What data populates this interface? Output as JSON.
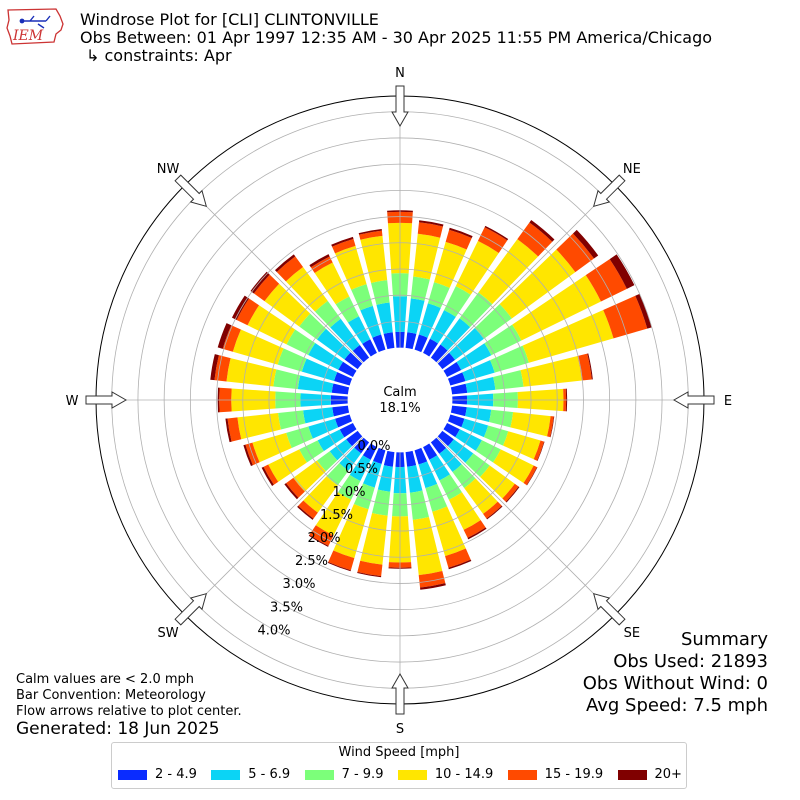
{
  "header": {
    "logo_text": "IEM",
    "title_line1": "Windrose Plot for [CLI] CLINTONVILLE",
    "title_line2": "Obs Between: 01 Apr 1997 12:35 AM - 30 Apr 2025 11:55 PM America/Chicago",
    "title_line3": "↳ constraints: Apr"
  },
  "summary": {
    "heading": "Summary",
    "obs_used": "Obs Used: 21893",
    "obs_without_wind": "Obs Without Wind: 0",
    "avg_speed": "Avg Speed: 7.5 mph"
  },
  "notes": {
    "calm_note": "Calm values are < 2.0 mph",
    "bar_convention": "Bar Convention: Meteorology",
    "flow_arrows": "Flow arrows relative to plot center.",
    "generated": "Generated: 18 Jun 2025"
  },
  "chart_data": {
    "type": "windrose",
    "calm_label": "Calm",
    "calm_value": "18.1%",
    "radial_unit": "%",
    "radial_max": 4.8,
    "calm_offset": 1.0,
    "radial_ticks": [
      "0.0%",
      "0.5%",
      "1.0%",
      "1.5%",
      "2.0%",
      "2.5%",
      "3.0%",
      "3.5%",
      "4.0%"
    ],
    "directions": [
      "N",
      "NE",
      "E",
      "SE",
      "S",
      "SW",
      "W",
      "NW"
    ],
    "bin_width_deg": 10,
    "legend_title": "Wind Speed [mph]",
    "bins": [
      {
        "label": "2 - 4.9",
        "color": "#0a2cff"
      },
      {
        "label": "5 - 6.9",
        "color": "#0bd4f5"
      },
      {
        "label": "7 - 9.9",
        "color": "#7cff7a"
      },
      {
        "label": "10 - 14.9",
        "color": "#ffe600"
      },
      {
        "label": "15 - 19.9",
        "color": "#ff4a00"
      },
      {
        "label": "20+",
        "color": "#800000"
      }
    ],
    "sectors": [
      {
        "dir_deg": 0,
        "cum": [
          0.3,
          0.98,
          1.42,
          2.38,
          2.59,
          2.62
        ]
      },
      {
        "dir_deg": 10,
        "cum": [
          0.3,
          0.95,
          1.37,
          2.19,
          2.41,
          2.45
        ]
      },
      {
        "dir_deg": 20,
        "cum": [
          0.3,
          0.92,
          1.34,
          2.14,
          2.38,
          2.42
        ]
      },
      {
        "dir_deg": 30,
        "cum": [
          0.3,
          0.91,
          1.42,
          2.38,
          2.67,
          2.7
        ]
      },
      {
        "dir_deg": 40,
        "cum": [
          0.31,
          0.93,
          1.54,
          2.8,
          3.19,
          3.25
        ]
      },
      {
        "dir_deg": 50,
        "cum": [
          0.3,
          0.98,
          1.64,
          3.14,
          3.58,
          3.68
        ]
      },
      {
        "dir_deg": 60,
        "cum": [
          0.3,
          0.94,
          1.58,
          3.27,
          3.82,
          3.98
        ]
      },
      {
        "dir_deg": 70,
        "cum": [
          0.3,
          0.88,
          1.56,
          3.24,
          3.91,
          4.0
        ]
      },
      {
        "dir_deg": 80,
        "cum": [
          0.29,
          0.83,
          1.37,
          2.49,
          2.68,
          2.7
        ]
      },
      {
        "dir_deg": 90,
        "cum": [
          0.28,
          0.78,
          1.25,
          2.12,
          2.17,
          2.19
        ]
      },
      {
        "dir_deg": 100,
        "cum": [
          0.28,
          0.75,
          1.17,
          1.89,
          1.95,
          1.96
        ]
      },
      {
        "dir_deg": 110,
        "cum": [
          0.28,
          0.75,
          1.15,
          1.79,
          1.86,
          1.87
        ]
      },
      {
        "dir_deg": 120,
        "cum": [
          0.27,
          0.74,
          1.14,
          1.84,
          1.91,
          1.92
        ]
      },
      {
        "dir_deg": 130,
        "cum": [
          0.27,
          0.73,
          1.12,
          1.71,
          1.8,
          1.82
        ]
      },
      {
        "dir_deg": 140,
        "cum": [
          0.27,
          0.7,
          1.08,
          1.69,
          1.8,
          1.82
        ]
      },
      {
        "dir_deg": 150,
        "cum": [
          0.27,
          0.71,
          1.12,
          1.76,
          1.93,
          1.96
        ]
      },
      {
        "dir_deg": 160,
        "cum": [
          0.28,
          0.75,
          1.22,
          2.1,
          2.33,
          2.36
        ]
      },
      {
        "dir_deg": 170,
        "cum": [
          0.28,
          0.78,
          1.3,
          2.36,
          2.6,
          2.64
        ]
      },
      {
        "dir_deg": 180,
        "cum": [
          0.28,
          0.78,
          1.22,
          2.1,
          2.2,
          2.22
        ]
      },
      {
        "dir_deg": 190,
        "cum": [
          0.28,
          0.76,
          1.22,
          2.16,
          2.38,
          2.4
        ]
      },
      {
        "dir_deg": 200,
        "cum": [
          0.27,
          0.74,
          1.17,
          2.14,
          2.38,
          2.4
        ]
      },
      {
        "dir_deg": 210,
        "cum": [
          0.27,
          0.72,
          1.12,
          1.88,
          2.1,
          2.12
        ]
      },
      {
        "dir_deg": 220,
        "cum": [
          0.26,
          0.67,
          1.02,
          1.66,
          1.8,
          1.83
        ]
      },
      {
        "dir_deg": 230,
        "cum": [
          0.27,
          0.66,
          0.96,
          1.52,
          1.69,
          1.73
        ]
      },
      {
        "dir_deg": 240,
        "cum": [
          0.28,
          0.75,
          1.14,
          1.8,
          1.9,
          1.94
        ]
      },
      {
        "dir_deg": 250,
        "cum": [
          0.29,
          0.82,
          1.26,
          1.93,
          2.07,
          2.11
        ]
      },
      {
        "dir_deg": 260,
        "cum": [
          0.3,
          0.86,
          1.34,
          2.12,
          2.31,
          2.35
        ]
      },
      {
        "dir_deg": 270,
        "cum": [
          0.32,
          0.9,
          1.38,
          2.22,
          2.45,
          2.48
        ]
      },
      {
        "dir_deg": 280,
        "cum": [
          0.31,
          0.96,
          1.43,
          2.33,
          2.56,
          2.64
        ]
      },
      {
        "dir_deg": 290,
        "cum": [
          0.31,
          0.95,
          1.43,
          2.32,
          2.52,
          2.62
        ]
      },
      {
        "dir_deg": 300,
        "cum": [
          0.31,
          0.95,
          1.41,
          2.24,
          2.47,
          2.57
        ]
      },
      {
        "dir_deg": 310,
        "cum": [
          0.31,
          0.96,
          1.38,
          2.2,
          2.45,
          2.53
        ]
      },
      {
        "dir_deg": 320,
        "cum": [
          0.3,
          0.92,
          1.34,
          2.14,
          2.39,
          2.44
        ]
      },
      {
        "dir_deg": 330,
        "cum": [
          0.29,
          0.78,
          1.2,
          1.92,
          2.05,
          2.1
        ]
      },
      {
        "dir_deg": 340,
        "cum": [
          0.3,
          0.87,
          1.3,
          2.06,
          2.2,
          2.24
        ]
      },
      {
        "dir_deg": 350,
        "cum": [
          0.3,
          0.87,
          1.3,
          2.15,
          2.25,
          2.28
        ]
      }
    ]
  }
}
